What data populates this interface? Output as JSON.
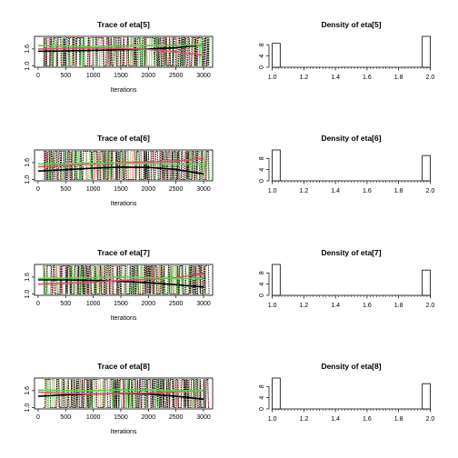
{
  "chart_data": [
    {
      "type": "line",
      "title": "Trace of eta[5]",
      "xlabel": "Iterations",
      "ylabel": "",
      "xlim": [
        0,
        3100
      ],
      "ylim": [
        1.0,
        2.0
      ],
      "x_ticks": [
        0,
        500,
        1000,
        1500,
        2000,
        2500,
        3000
      ],
      "y_ticks": [
        1.0,
        1.6
      ],
      "series": [
        {
          "color": "#000000",
          "smooth_x": [
            0,
            500,
            1000,
            1500,
            2000,
            2500,
            3000
          ],
          "smooth_y": [
            1.52,
            1.53,
            1.55,
            1.57,
            1.6,
            1.64,
            1.75
          ]
        },
        {
          "color": "#DF536B",
          "smooth_x": [
            0,
            500,
            1000,
            1500,
            2000,
            2500,
            3000
          ],
          "smooth_y": [
            1.6,
            1.62,
            1.63,
            1.62,
            1.58,
            1.5,
            1.38
          ]
        },
        {
          "color": "#61D04F",
          "smooth_x": [
            0,
            500,
            1000,
            1500,
            2000,
            2500,
            3000
          ],
          "smooth_y": [
            1.72,
            1.7,
            1.68,
            1.7,
            1.72,
            1.73,
            1.74
          ]
        }
      ]
    },
    {
      "type": "bar",
      "title": "Density of eta[5]",
      "xlim": [
        1.0,
        2.0
      ],
      "ylim": [
        0,
        11
      ],
      "x_ticks": [
        1.0,
        1.2,
        1.4,
        1.6,
        1.8,
        2.0
      ],
      "y_ticks": [
        0,
        4,
        8
      ],
      "bins": [
        {
          "from": 1.0,
          "to": 1.05,
          "value": 8.5
        },
        {
          "from": 1.95,
          "to": 2.0,
          "value": 11.0
        }
      ]
    },
    {
      "type": "line",
      "title": "Trace of eta[6]",
      "xlabel": "Iterations",
      "ylabel": "",
      "xlim": [
        0,
        3100
      ],
      "ylim": [
        1.0,
        2.0
      ],
      "x_ticks": [
        0,
        500,
        1000,
        1500,
        2000,
        2500,
        3000
      ],
      "y_ticks": [
        1.0,
        1.6
      ],
      "series": [
        {
          "color": "#000000",
          "smooth_x": [
            0,
            500,
            1000,
            1500,
            2000,
            2500,
            3000
          ],
          "smooth_y": [
            1.3,
            1.35,
            1.4,
            1.44,
            1.43,
            1.36,
            1.2
          ]
        },
        {
          "color": "#DF536B",
          "smooth_x": [
            0,
            500,
            1000,
            1500,
            2000,
            2500,
            3000
          ],
          "smooth_y": [
            1.45,
            1.5,
            1.55,
            1.6,
            1.62,
            1.65,
            1.75
          ]
        },
        {
          "color": "#61D04F",
          "smooth_x": [
            0,
            500,
            1000,
            1500,
            2000,
            2500,
            3000
          ],
          "smooth_y": [
            1.55,
            1.55,
            1.58,
            1.58,
            1.56,
            1.55,
            1.55
          ]
        }
      ]
    },
    {
      "type": "bar",
      "title": "Density of eta[6]",
      "xlim": [
        1.0,
        2.0
      ],
      "ylim": [
        0,
        11
      ],
      "x_ticks": [
        1.0,
        1.2,
        1.4,
        1.6,
        1.8,
        2.0
      ],
      "y_ticks": [
        0,
        4,
        8
      ],
      "bins": [
        {
          "from": 1.0,
          "to": 1.05,
          "value": 11.0
        },
        {
          "from": 1.95,
          "to": 2.0,
          "value": 9.0
        }
      ]
    },
    {
      "type": "line",
      "title": "Trace of eta[7]",
      "xlabel": "Iterations",
      "ylabel": "",
      "xlim": [
        0,
        3100
      ],
      "ylim": [
        1.0,
        2.0
      ],
      "x_ticks": [
        0,
        500,
        1000,
        1500,
        2000,
        2500,
        3000
      ],
      "y_ticks": [
        1.0,
        1.6
      ],
      "series": [
        {
          "color": "#000000",
          "smooth_x": [
            0,
            500,
            1000,
            1500,
            2000,
            2500,
            3000
          ],
          "smooth_y": [
            1.5,
            1.5,
            1.48,
            1.45,
            1.4,
            1.33,
            1.25
          ]
        },
        {
          "color": "#DF536B",
          "smooth_x": [
            0,
            500,
            1000,
            1500,
            2000,
            2500,
            3000
          ],
          "smooth_y": [
            1.35,
            1.38,
            1.42,
            1.48,
            1.52,
            1.58,
            1.72
          ]
        },
        {
          "color": "#61D04F",
          "smooth_x": [
            0,
            500,
            1000,
            1500,
            2000,
            2500,
            3000
          ],
          "smooth_y": [
            1.55,
            1.56,
            1.58,
            1.6,
            1.58,
            1.55,
            1.55
          ]
        }
      ]
    },
    {
      "type": "bar",
      "title": "Density of eta[7]",
      "xlim": [
        1.0,
        2.0
      ],
      "ylim": [
        0,
        11
      ],
      "x_ticks": [
        1.0,
        1.2,
        1.4,
        1.6,
        1.8,
        2.0
      ],
      "y_ticks": [
        0,
        4,
        8
      ],
      "bins": [
        {
          "from": 1.0,
          "to": 1.05,
          "value": 11.0
        },
        {
          "from": 1.95,
          "to": 2.0,
          "value": 9.0
        }
      ]
    },
    {
      "type": "line",
      "title": "Trace of eta[8]",
      "xlabel": "Iterations",
      "ylabel": "",
      "xlim": [
        0,
        3100
      ],
      "ylim": [
        1.0,
        2.0
      ],
      "x_ticks": [
        0,
        500,
        1000,
        1500,
        2000,
        2500,
        3000
      ],
      "y_ticks": [
        1.0,
        1.6
      ],
      "series": [
        {
          "color": "#000000",
          "smooth_x": [
            0,
            500,
            1000,
            1500,
            2000,
            2500,
            3000
          ],
          "smooth_y": [
            1.4,
            1.45,
            1.48,
            1.5,
            1.48,
            1.4,
            1.3
          ]
        },
        {
          "color": "#DF536B",
          "smooth_x": [
            0,
            500,
            1000,
            1500,
            2000,
            2500,
            3000
          ],
          "smooth_y": [
            1.55,
            1.5,
            1.48,
            1.5,
            1.52,
            1.56,
            1.6
          ]
        },
        {
          "color": "#61D04F",
          "smooth_x": [
            0,
            500,
            1000,
            1500,
            2000,
            2500,
            3000
          ],
          "smooth_y": [
            1.62,
            1.6,
            1.6,
            1.62,
            1.62,
            1.6,
            1.6
          ]
        }
      ]
    },
    {
      "type": "bar",
      "title": "Density of eta[8]",
      "xlim": [
        1.0,
        2.0
      ],
      "ylim": [
        0,
        11
      ],
      "x_ticks": [
        1.0,
        1.2,
        1.4,
        1.6,
        1.8,
        2.0
      ],
      "y_ticks": [
        0,
        4,
        8
      ],
      "bins": [
        {
          "from": 1.0,
          "to": 1.05,
          "value": 11.0
        },
        {
          "from": 1.95,
          "to": 2.0,
          "value": 9.0
        }
      ]
    }
  ]
}
